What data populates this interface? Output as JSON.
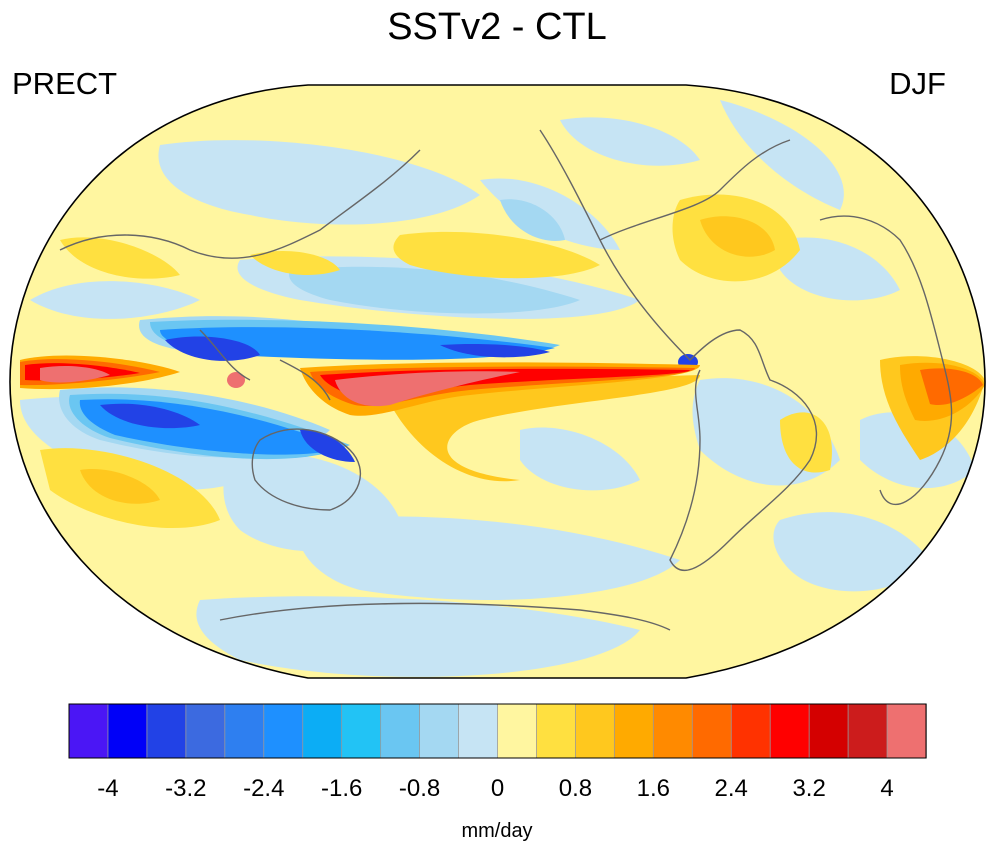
{
  "title": "SSTv2 - CTL",
  "variable_label": "PRECT",
  "season_label": "DJF",
  "units": "mm/day",
  "colorbar": {
    "tick_labels": [
      "-4",
      "-3.2",
      "-2.4",
      "-1.6",
      "-0.8",
      "0",
      "0.8",
      "1.6",
      "2.4",
      "3.2",
      "4"
    ],
    "colors": [
      "#4b16f5",
      "#0000f8",
      "#2242e6",
      "#3c6ae0",
      "#2e7ff0",
      "#1e90ff",
      "#0cadf5",
      "#22c3f5",
      "#6ac6f2",
      "#a4d8f2",
      "#c6e4f4",
      "#fff6a0",
      "#ffe040",
      "#ffc81e",
      "#ffaa00",
      "#ff8a00",
      "#ff6a00",
      "#ff3200",
      "#ff0000",
      "#d40000",
      "#cc1c1c",
      "#ee7070"
    ]
  }
}
